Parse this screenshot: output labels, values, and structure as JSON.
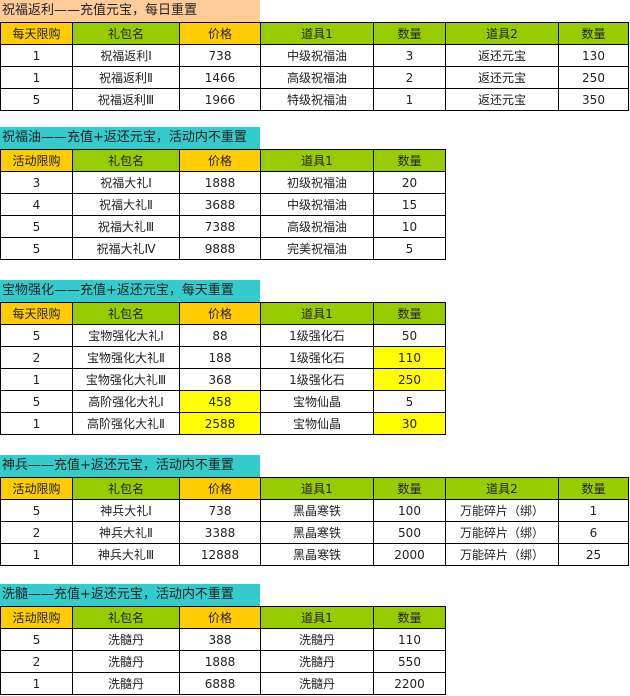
{
  "colors": {
    "orange": "#FFCC00",
    "green": "#99CC00",
    "peach": "#FFCC99",
    "cyan": "#33CCCC",
    "highlight": "#FFFF00"
  },
  "sections": [
    {
      "title": "祝福返利——充值元宝，每日重置",
      "title_color": "#FFCC99",
      "headers": [
        "每天限购",
        "礼包名",
        "价格",
        "道具1",
        "数量",
        "道具2",
        "数量"
      ],
      "rows": [
        [
          "1",
          "祝福返利Ⅰ",
          "738",
          "中级祝福油",
          "3",
          "返还元宝",
          "130"
        ],
        [
          "1",
          "祝福返利Ⅱ",
          "1466",
          "高级祝福油",
          "2",
          "返还元宝",
          "250"
        ],
        [
          "5",
          "祝福返利Ⅲ",
          "1966",
          "特级祝福油",
          "1",
          "返还元宝",
          "350"
        ]
      ],
      "highlights": []
    },
    {
      "title": "祝福油——充值+返还元宝，活动内不重置",
      "title_color": "#33CCCC",
      "headers": [
        "活动限购",
        "礼包名",
        "价格",
        "道具1",
        "数量"
      ],
      "rows": [
        [
          "3",
          "祝福大礼Ⅰ",
          "1888",
          "初级祝福油",
          "20"
        ],
        [
          "4",
          "祝福大礼Ⅱ",
          "3688",
          "中级祝福油",
          "15"
        ],
        [
          "5",
          "祝福大礼Ⅲ",
          "7388",
          "高级祝福油",
          "10"
        ],
        [
          "5",
          "祝福大礼Ⅳ",
          "9888",
          "完美祝福油",
          "5"
        ]
      ],
      "highlights": []
    },
    {
      "title": "宝物强化——充值+返还元宝，每天重置",
      "title_color": "#33CCCC",
      "headers": [
        "每天限购",
        "礼包名",
        "价格",
        "道具1",
        "数量"
      ],
      "rows": [
        [
          "5",
          "宝物强化大礼Ⅰ",
          "88",
          "1级强化石",
          "50"
        ],
        [
          "2",
          "宝物强化大礼Ⅱ",
          "188",
          "1级强化石",
          "110"
        ],
        [
          "1",
          "宝物强化大礼Ⅲ",
          "368",
          "1级强化石",
          "250"
        ],
        [
          "5",
          "高阶强化大礼Ⅰ",
          "458",
          "宝物仙晶",
          "5"
        ],
        [
          "1",
          "高阶强化大礼Ⅱ",
          "2588",
          "宝物仙晶",
          "30"
        ]
      ],
      "highlights": [
        [
          1,
          4
        ],
        [
          2,
          4
        ],
        [
          3,
          2
        ],
        [
          4,
          2
        ],
        [
          4,
          4
        ]
      ]
    },
    {
      "title": "神兵——充值+返还元宝，活动内不重置",
      "title_color": "#33CCCC",
      "headers": [
        "活动限购",
        "礼包名",
        "价格",
        "道具1",
        "数量",
        "道具2",
        "数量"
      ],
      "rows": [
        [
          "5",
          "神兵大礼Ⅰ",
          "738",
          "黑晶寒铁",
          "100",
          "万能碎片（绑）",
          "1"
        ],
        [
          "2",
          "神兵大礼Ⅱ",
          "3388",
          "黑晶寒铁",
          "500",
          "万能碎片（绑）",
          "6"
        ],
        [
          "1",
          "神兵大礼Ⅲ",
          "12888",
          "黑晶寒铁",
          "2000",
          "万能碎片（绑）",
          "25"
        ]
      ],
      "highlights": []
    },
    {
      "title": "洗髓——充值+返还元宝，活动内不重置",
      "title_color": "#33CCCC",
      "headers": [
        "活动限购",
        "礼包名",
        "价格",
        "道具1",
        "数量"
      ],
      "rows": [
        [
          "5",
          "洗髓丹",
          "388",
          "洗髓丹",
          "110"
        ],
        [
          "2",
          "洗髓丹",
          "1888",
          "洗髓丹",
          "550"
        ],
        [
          "1",
          "洗髓丹",
          "6888",
          "洗髓丹",
          "2200"
        ]
      ],
      "highlights": []
    }
  ]
}
